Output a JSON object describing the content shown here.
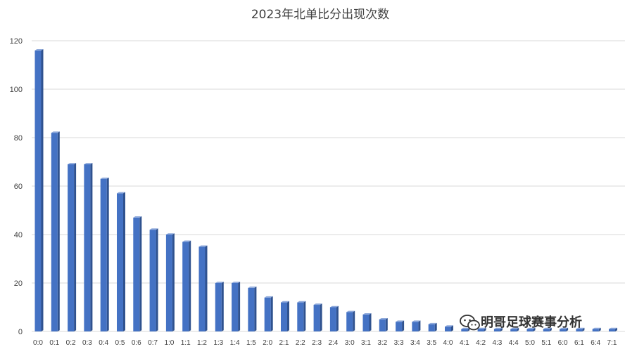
{
  "chart_data": {
    "type": "bar",
    "title": "2023年北单比分出现次数",
    "xlabel": "",
    "ylabel": "",
    "ylim": [
      0,
      120
    ],
    "yticks": [
      0,
      20,
      40,
      60,
      80,
      100,
      120
    ],
    "grid": true,
    "legend": "none",
    "bar_color": "#4472c4",
    "bar_side_color": "#2f528f",
    "bar_top_color": "#8faadc",
    "categories": [
      "0:0",
      "0:1",
      "0:2",
      "0:3",
      "0:4",
      "0:5",
      "0:6",
      "0:7",
      "1:0",
      "1:1",
      "1:2",
      "1:3",
      "1:4",
      "1:5",
      "2:0",
      "2:1",
      "2:2",
      "2:3",
      "2:4",
      "3:0",
      "3:1",
      "3:2",
      "3:3",
      "3:4",
      "3:5",
      "4:0",
      "4:1",
      "4:2",
      "4:3",
      "4:4",
      "5:0",
      "5:1",
      "6:0",
      "6:1",
      "6:4",
      "7:1"
    ],
    "values": [
      116,
      82,
      69,
      69,
      63,
      57,
      47,
      42,
      40,
      37,
      35,
      20,
      20,
      18,
      14,
      12,
      12,
      11,
      10,
      8,
      7,
      5,
      4,
      4,
      3,
      2,
      1,
      1,
      1,
      1,
      1,
      1,
      1,
      1,
      1,
      1
    ]
  },
  "watermark": {
    "text": "明哥足球赛事分析",
    "icon": "wechat-icon"
  }
}
